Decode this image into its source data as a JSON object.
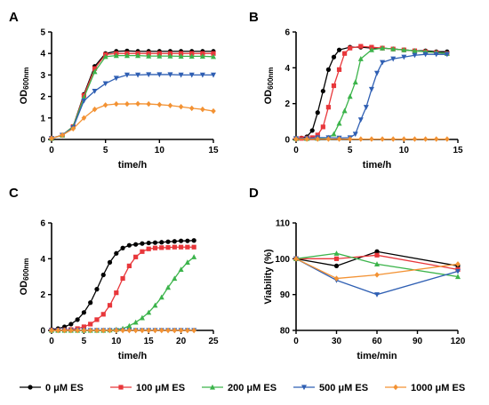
{
  "figure": {
    "legend": {
      "position": "bottom",
      "entries": [
        {
          "label": "0 μM ES",
          "color": "#000000",
          "marker": "circle"
        },
        {
          "label": "100 μM ES",
          "color": "#e8373b",
          "marker": "square"
        },
        {
          "label": "200 μM ES",
          "color": "#3cb44b",
          "marker": "triangle-up"
        },
        {
          "label": "500 μM ES",
          "color": "#2f5fb3",
          "marker": "triangle-down"
        },
        {
          "label": "1000 μM ES",
          "color": "#f39233",
          "marker": "diamond"
        }
      ]
    }
  },
  "chart_data": [
    {
      "panel": "A",
      "type": "line",
      "xlabel": "time/h",
      "ylabel": "OD",
      "ylabel_sub": "600nm",
      "xlim": [
        0,
        15
      ],
      "ylim": [
        0,
        5
      ],
      "xticks": [
        "0",
        "5",
        "10",
        "15"
      ],
      "yticks": [
        "0",
        "1",
        "2",
        "3",
        "4",
        "5"
      ],
      "grid": false,
      "series": [
        {
          "name": "0 μM ES",
          "x": [
            0,
            1,
            2,
            3,
            4,
            5,
            6,
            7,
            8,
            9,
            10,
            11,
            12,
            13,
            14,
            15
          ],
          "y": [
            0.05,
            0.2,
            0.6,
            2.1,
            3.4,
            4.0,
            4.1,
            4.12,
            4.1,
            4.1,
            4.1,
            4.1,
            4.1,
            4.1,
            4.1,
            4.1
          ]
        },
        {
          "name": "100 μM ES",
          "x": [
            0,
            1,
            2,
            3,
            4,
            5,
            6,
            7,
            8,
            9,
            10,
            11,
            12,
            13,
            14,
            15
          ],
          "y": [
            0.05,
            0.2,
            0.6,
            2.05,
            3.3,
            3.95,
            4.0,
            4.0,
            4.0,
            4.0,
            4.0,
            4.0,
            4.0,
            4.0,
            4.0,
            4.0
          ]
        },
        {
          "name": "200 μM ES",
          "x": [
            0,
            1,
            2,
            3,
            4,
            5,
            6,
            7,
            8,
            9,
            10,
            11,
            12,
            13,
            14,
            15
          ],
          "y": [
            0.05,
            0.2,
            0.6,
            1.95,
            3.15,
            3.85,
            3.9,
            3.9,
            3.9,
            3.88,
            3.88,
            3.88,
            3.87,
            3.87,
            3.87,
            3.85
          ]
        },
        {
          "name": "500 μM ES",
          "x": [
            0,
            1,
            2,
            3,
            4,
            5,
            6,
            7,
            8,
            9,
            10,
            11,
            12,
            13,
            14,
            15
          ],
          "y": [
            0.05,
            0.2,
            0.55,
            1.8,
            2.25,
            2.6,
            2.85,
            3.0,
            3.0,
            3.02,
            3.02,
            3.02,
            3.0,
            3.0,
            3.0,
            3.0
          ]
        },
        {
          "name": "1000 μM ES",
          "x": [
            0,
            1,
            2,
            3,
            4,
            5,
            6,
            7,
            8,
            9,
            10,
            11,
            12,
            13,
            14,
            15
          ],
          "y": [
            0.05,
            0.2,
            0.5,
            1.0,
            1.4,
            1.6,
            1.65,
            1.65,
            1.66,
            1.65,
            1.62,
            1.58,
            1.52,
            1.45,
            1.4,
            1.32
          ]
        }
      ]
    },
    {
      "panel": "B",
      "type": "line",
      "xlabel": "time/h",
      "ylabel": "OD",
      "ylabel_sub": "600nm",
      "xlim": [
        0,
        15
      ],
      "ylim": [
        0,
        6
      ],
      "xticks": [
        "0",
        "5",
        "10",
        "15"
      ],
      "yticks": [
        "0",
        "2",
        "4",
        "6"
      ],
      "grid": false,
      "series": [
        {
          "name": "0 μM ES",
          "x": [
            0,
            0.5,
            1,
            1.5,
            2,
            2.5,
            3,
            3.5,
            4,
            5,
            6,
            7,
            8,
            9,
            10,
            11,
            12,
            13,
            14
          ],
          "y": [
            0.05,
            0.08,
            0.15,
            0.5,
            1.5,
            2.7,
            3.9,
            4.6,
            5.0,
            5.15,
            5.15,
            5.1,
            5.1,
            5.05,
            5.0,
            4.95,
            4.95,
            4.9,
            4.9
          ]
        },
        {
          "name": "100 μM ES",
          "x": [
            0,
            0.5,
            1,
            1.5,
            2,
            2.5,
            3,
            3.5,
            4,
            4.5,
            5,
            6,
            7,
            8,
            9,
            10,
            11,
            12,
            13,
            14
          ],
          "y": [
            0.05,
            0.06,
            0.08,
            0.1,
            0.25,
            0.7,
            1.8,
            3.0,
            3.9,
            4.8,
            5.1,
            5.2,
            5.15,
            5.1,
            5.05,
            5.0,
            4.95,
            4.9,
            4.85,
            4.8
          ]
        },
        {
          "name": "200 μM ES",
          "x": [
            0,
            1,
            2,
            3,
            3.5,
            4,
            4.5,
            5,
            5.5,
            6,
            7,
            8,
            9,
            10,
            11,
            12,
            13,
            14
          ],
          "y": [
            0.05,
            0.05,
            0.06,
            0.1,
            0.3,
            0.9,
            1.6,
            2.4,
            3.2,
            4.5,
            5.0,
            5.1,
            5.05,
            5.0,
            4.95,
            4.9,
            4.85,
            4.8
          ]
        },
        {
          "name": "500 μM ES",
          "x": [
            0,
            1,
            2,
            3,
            4,
            5,
            5.5,
            6,
            6.5,
            7,
            7.5,
            8,
            9,
            10,
            11,
            12,
            13,
            14
          ],
          "y": [
            0.05,
            0.05,
            0.1,
            0.1,
            0.08,
            0.1,
            0.3,
            1.1,
            1.8,
            2.8,
            3.7,
            4.3,
            4.5,
            4.6,
            4.7,
            4.75,
            4.75,
            4.75
          ]
        },
        {
          "name": "1000 μM ES",
          "x": [
            0,
            1,
            2,
            3,
            4,
            5,
            6,
            7,
            8,
            9,
            10,
            11,
            12,
            13,
            14
          ],
          "y": [
            0.02,
            0.02,
            0.02,
            0.02,
            0.02,
            0.02,
            0.02,
            0.02,
            0.02,
            0.02,
            0.02,
            0.02,
            0.02,
            0.02,
            0.02
          ]
        }
      ]
    },
    {
      "panel": "C",
      "type": "line",
      "xlabel": "time/h",
      "ylabel": "OD",
      "ylabel_sub": "600nm",
      "xlim": [
        0,
        25
      ],
      "ylim": [
        0,
        6
      ],
      "xticks": [
        "0",
        "5",
        "10",
        "15",
        "20",
        "25"
      ],
      "yticks": [
        "0",
        "2",
        "4",
        "6"
      ],
      "grid": false,
      "series": [
        {
          "name": "0 μM ES",
          "x": [
            0,
            1,
            2,
            3,
            4,
            5,
            6,
            7,
            8,
            9,
            10,
            11,
            12,
            13,
            14,
            15,
            16,
            17,
            18,
            19,
            20,
            21,
            22
          ],
          "y": [
            0.05,
            0.1,
            0.2,
            0.35,
            0.6,
            1.0,
            1.55,
            2.3,
            3.1,
            3.8,
            4.3,
            4.6,
            4.75,
            4.8,
            4.85,
            4.88,
            4.9,
            4.92,
            4.95,
            4.97,
            5.0,
            5.0,
            5.02
          ]
        },
        {
          "name": "100 μM ES",
          "x": [
            0,
            1,
            2,
            3,
            4,
            5,
            6,
            7,
            8,
            9,
            10,
            11,
            12,
            13,
            14,
            15,
            16,
            17,
            18,
            19,
            20,
            21,
            22
          ],
          "y": [
            0.02,
            0.02,
            0.03,
            0.05,
            0.1,
            0.2,
            0.35,
            0.6,
            0.9,
            1.4,
            2.1,
            2.9,
            3.6,
            4.1,
            4.4,
            4.55,
            4.6,
            4.62,
            4.63,
            4.65,
            4.65,
            4.65,
            4.65
          ]
        },
        {
          "name": "200 μM ES",
          "x": [
            0,
            1,
            2,
            3,
            4,
            5,
            6,
            7,
            8,
            9,
            10,
            11,
            12,
            13,
            14,
            15,
            16,
            17,
            18,
            19,
            20,
            21,
            22
          ],
          "y": [
            0.0,
            0.0,
            0.0,
            0.0,
            0.0,
            0.0,
            0.0,
            0.0,
            0.0,
            0.02,
            0.05,
            0.1,
            0.25,
            0.45,
            0.7,
            1.0,
            1.4,
            1.85,
            2.4,
            2.9,
            3.4,
            3.8,
            4.1
          ]
        },
        {
          "name": "500 μM ES",
          "x": [
            0,
            1,
            2,
            3,
            4,
            5,
            6,
            7,
            8,
            9,
            10,
            11,
            12,
            13,
            14,
            15,
            16,
            17,
            18,
            19,
            20,
            21,
            22
          ],
          "y": [
            0.0,
            0.0,
            0.0,
            0.0,
            0.0,
            0.0,
            0.0,
            0.0,
            0.0,
            0.0,
            0.0,
            0.0,
            0.0,
            0.0,
            0.0,
            0.0,
            0.0,
            0.0,
            0.0,
            0.0,
            0.0,
            0.0,
            0.0
          ]
        },
        {
          "name": "1000 μM ES",
          "x": [
            0,
            1,
            2,
            3,
            4,
            5,
            6,
            7,
            8,
            9,
            10,
            11,
            12,
            13,
            14,
            15,
            16,
            17,
            18,
            19,
            20,
            21,
            22
          ],
          "y": [
            0.0,
            0.0,
            0.0,
            0.0,
            0.0,
            0.0,
            0.0,
            0.0,
            0.0,
            0.0,
            0.0,
            0.0,
            0.0,
            0.0,
            0.0,
            0.0,
            0.0,
            0.0,
            0.0,
            0.0,
            0.0,
            0.0,
            0.0
          ]
        }
      ]
    },
    {
      "panel": "D",
      "type": "line",
      "xlabel": "time/min",
      "ylabel": "Viability (%)",
      "xlim": [
        0,
        120
      ],
      "ylim": [
        80,
        110
      ],
      "xticks": [
        "0",
        "30",
        "60",
        "90",
        "120"
      ],
      "yticks": [
        "80",
        "90",
        "100",
        "110"
      ],
      "grid": false,
      "series": [
        {
          "name": "0 μM ES",
          "x": [
            0,
            30,
            60,
            120
          ],
          "y": [
            100,
            98,
            102,
            98
          ]
        },
        {
          "name": "100 μM ES",
          "x": [
            0,
            30,
            60,
            120
          ],
          "y": [
            100,
            100,
            101,
            97
          ]
        },
        {
          "name": "200 μM ES",
          "x": [
            0,
            30,
            60,
            120
          ],
          "y": [
            100,
            101.5,
            98.5,
            95
          ]
        },
        {
          "name": "500 μM ES",
          "x": [
            0,
            30,
            60,
            120
          ],
          "y": [
            100,
            94,
            90,
            96.5
          ]
        },
        {
          "name": "1000 μM ES",
          "x": [
            0,
            30,
            60,
            120
          ],
          "y": [
            100,
            94.5,
            95.5,
            98.5
          ]
        }
      ]
    }
  ]
}
